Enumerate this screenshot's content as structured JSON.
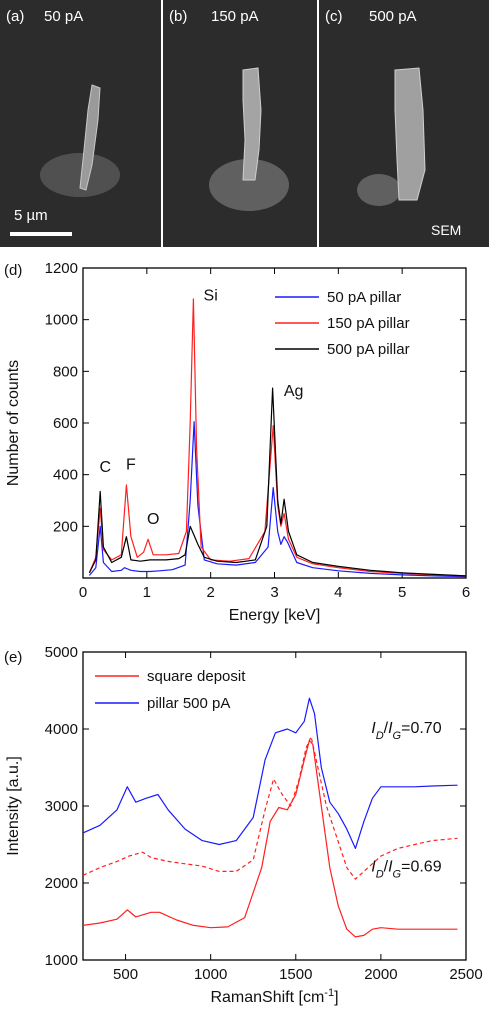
{
  "sem": {
    "panels": [
      {
        "label": "(a)",
        "current": "50 pA"
      },
      {
        "label": "(b)",
        "current": "150 pA"
      },
      {
        "label": "(c)",
        "current": "500 pA"
      }
    ],
    "scale_bar": "5 µm",
    "tag": "SEM"
  },
  "colors": {
    "blue": "#1a1aff",
    "red": "#ff2020",
    "black": "#000000"
  },
  "chart_data": [
    {
      "panel_label": "(d)",
      "type": "line",
      "xlabel": "Energy [keV]",
      "ylabel": "Number of counts",
      "xlim": [
        0,
        6
      ],
      "ylim": [
        0,
        1200
      ],
      "xticks": [
        0,
        1,
        2,
        3,
        4,
        5,
        6
      ],
      "yticks": [
        200,
        400,
        600,
        800,
        1000,
        1200
      ],
      "legend_position": "top-right",
      "annotations": [
        {
          "text": "C",
          "x": 0.35,
          "y": 410
        },
        {
          "text": "F",
          "x": 0.75,
          "y": 420
        },
        {
          "text": "O",
          "x": 1.1,
          "y": 210
        },
        {
          "text": "Si",
          "x": 2.0,
          "y": 1075
        },
        {
          "text": "Ag",
          "x": 3.3,
          "y": 705
        }
      ],
      "series": [
        {
          "name": "50 pA pillar",
          "color": "#1a1aff",
          "x": [
            0.1,
            0.2,
            0.27,
            0.32,
            0.45,
            0.6,
            0.65,
            0.75,
            0.9,
            1.05,
            1.2,
            1.4,
            1.6,
            1.68,
            1.74,
            1.8,
            1.9,
            2.1,
            2.4,
            2.7,
            2.9,
            2.98,
            3.05,
            3.1,
            3.15,
            3.2,
            3.35,
            3.6,
            4.0,
            4.5,
            5.0,
            5.5,
            6.0
          ],
          "y": [
            10,
            40,
            200,
            60,
            25,
            30,
            40,
            30,
            25,
            25,
            28,
            32,
            50,
            300,
            605,
            280,
            70,
            55,
            50,
            60,
            120,
            350,
            180,
            130,
            160,
            140,
            60,
            40,
            28,
            18,
            12,
            8,
            5
          ]
        },
        {
          "name": "150 pA pillar",
          "color": "#ff2020",
          "x": [
            0.1,
            0.2,
            0.27,
            0.32,
            0.45,
            0.6,
            0.68,
            0.75,
            0.85,
            0.95,
            1.02,
            1.1,
            1.3,
            1.5,
            1.62,
            1.68,
            1.73,
            1.78,
            1.85,
            2.0,
            2.3,
            2.6,
            2.85,
            2.98,
            3.05,
            3.1,
            3.15,
            3.22,
            3.35,
            3.6,
            4.0,
            4.5,
            5.0,
            5.5,
            6.0
          ],
          "y": [
            20,
            80,
            270,
            110,
            70,
            90,
            360,
            160,
            80,
            100,
            150,
            90,
            90,
            95,
            180,
            600,
            1080,
            500,
            120,
            70,
            65,
            75,
            180,
            590,
            280,
            200,
            250,
            150,
            80,
            55,
            40,
            25,
            18,
            12,
            8
          ]
        },
        {
          "name": "500 pA pillar",
          "color": "#000000",
          "x": [
            0.1,
            0.2,
            0.27,
            0.32,
            0.45,
            0.6,
            0.68,
            0.75,
            0.9,
            1.05,
            1.3,
            1.5,
            1.6,
            1.68,
            1.74,
            1.8,
            1.9,
            2.1,
            2.4,
            2.7,
            2.88,
            2.97,
            3.05,
            3.1,
            3.15,
            3.22,
            3.35,
            3.6,
            4.0,
            4.5,
            5.0,
            5.5,
            6.0
          ],
          "y": [
            20,
            70,
            335,
            120,
            60,
            80,
            160,
            70,
            65,
            70,
            70,
            75,
            90,
            200,
            165,
            130,
            80,
            65,
            60,
            70,
            200,
            735,
            300,
            210,
            305,
            180,
            90,
            60,
            45,
            30,
            20,
            14,
            8
          ]
        }
      ]
    },
    {
      "panel_label": "(e)",
      "type": "line",
      "xlabel": "RamanShift [cm-1]",
      "ylabel": "Intensity [a.u.]",
      "xlim": [
        250,
        2500
      ],
      "ylim": [
        1000,
        5000
      ],
      "xticks": [
        500,
        1000,
        1500,
        2000,
        2500
      ],
      "yticks": [
        1000,
        2000,
        3000,
        4000,
        5000
      ],
      "legend_position": "top-left",
      "annotations": [
        {
          "text": "ID/IG=0.70",
          "x": 2150,
          "y": 3950,
          "color": "#1a1aff"
        },
        {
          "text": "ID/IG=0.69",
          "x": 2150,
          "y": 2150,
          "color": "#ff2020"
        }
      ],
      "series": [
        {
          "name": "square deposit",
          "color": "#ff2020",
          "x": [
            250,
            350,
            450,
            510,
            560,
            650,
            700,
            800,
            900,
            1000,
            1100,
            1200,
            1300,
            1350,
            1400,
            1450,
            1500,
            1550,
            1580,
            1600,
            1650,
            1700,
            1750,
            1800,
            1850,
            1900,
            1950,
            2000,
            2100,
            2200,
            2300,
            2450
          ],
          "y": [
            1450,
            1480,
            1530,
            1650,
            1560,
            1620,
            1620,
            1520,
            1450,
            1420,
            1430,
            1550,
            2200,
            2800,
            2980,
            2950,
            3150,
            3600,
            3850,
            3800,
            3000,
            2200,
            1700,
            1400,
            1300,
            1320,
            1400,
            1420,
            1400,
            1400,
            1400,
            1400
          ]
        },
        {
          "name": "square deposit (dashed)",
          "color": "#ff2020",
          "dashed": true,
          "x": [
            250,
            350,
            450,
            520,
            600,
            650,
            750,
            850,
            950,
            1050,
            1150,
            1250,
            1320,
            1370,
            1420,
            1470,
            1520,
            1560,
            1590,
            1620,
            1680,
            1740,
            1800,
            1850,
            1900,
            2000,
            2100,
            2200,
            2300,
            2450
          ],
          "y": [
            2100,
            2200,
            2280,
            2350,
            2400,
            2330,
            2280,
            2250,
            2220,
            2150,
            2150,
            2300,
            2950,
            3350,
            3150,
            3000,
            3350,
            3750,
            3900,
            3600,
            3000,
            2600,
            2200,
            2050,
            2150,
            2350,
            2450,
            2500,
            2550,
            2580
          ]
        },
        {
          "name": "pillar 500 pA",
          "color": "#1a1aff",
          "x": [
            250,
            350,
            450,
            510,
            560,
            620,
            690,
            750,
            850,
            950,
            1050,
            1150,
            1250,
            1320,
            1380,
            1450,
            1500,
            1550,
            1580,
            1610,
            1650,
            1700,
            1750,
            1800,
            1850,
            1900,
            1950,
            2000,
            2100,
            2200,
            2300,
            2450
          ],
          "y": [
            2650,
            2750,
            2950,
            3250,
            3050,
            3100,
            3150,
            2950,
            2700,
            2550,
            2500,
            2550,
            2850,
            3600,
            3950,
            4000,
            3950,
            4100,
            4400,
            4200,
            3500,
            3050,
            2900,
            2700,
            2450,
            2800,
            3100,
            3250,
            3250,
            3250,
            3260,
            3270
          ]
        }
      ]
    }
  ]
}
